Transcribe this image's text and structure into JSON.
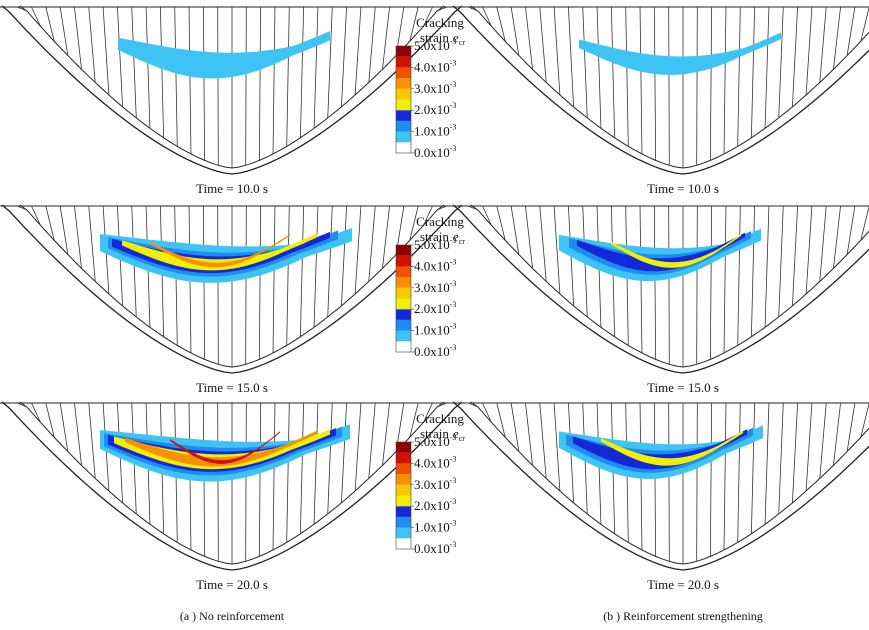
{
  "panels": {
    "left": [
      {
        "time_label": "Time = 10.0 s"
      },
      {
        "time_label": "Time = 15.0 s"
      },
      {
        "time_label": "Time = 20.0 s"
      }
    ],
    "right": [
      {
        "time_label": "Time = 10.0 s"
      },
      {
        "time_label": "Time = 15.0 s"
      },
      {
        "time_label": "Time = 20.0 s"
      }
    ]
  },
  "legend": {
    "title": "Cracking",
    "subtitle": "strain",
    "symbol": "e",
    "symbol_subscript": "cr",
    "levels": [
      {
        "mantissa": "5.0x10",
        "exponent": "-3"
      },
      {
        "mantissa": "4.0x10",
        "exponent": "-3"
      },
      {
        "mantissa": "3.0x10",
        "exponent": "-3"
      },
      {
        "mantissa": "2.0x10",
        "exponent": "-3"
      },
      {
        "mantissa": "1.0x10",
        "exponent": "-3"
      },
      {
        "mantissa": "0.0x10",
        "exponent": "-3"
      }
    ],
    "colors": [
      "#ffffff",
      "#3ec4f4",
      "#1e8cf0",
      "#1428d8",
      "#f0f000",
      "#f8c800",
      "#f89000",
      "#f05000",
      "#d01000",
      "#900000"
    ]
  },
  "captions": [
    "(a ) No reinforcement",
    "(b ) Reinforcement strengthening"
  ]
}
